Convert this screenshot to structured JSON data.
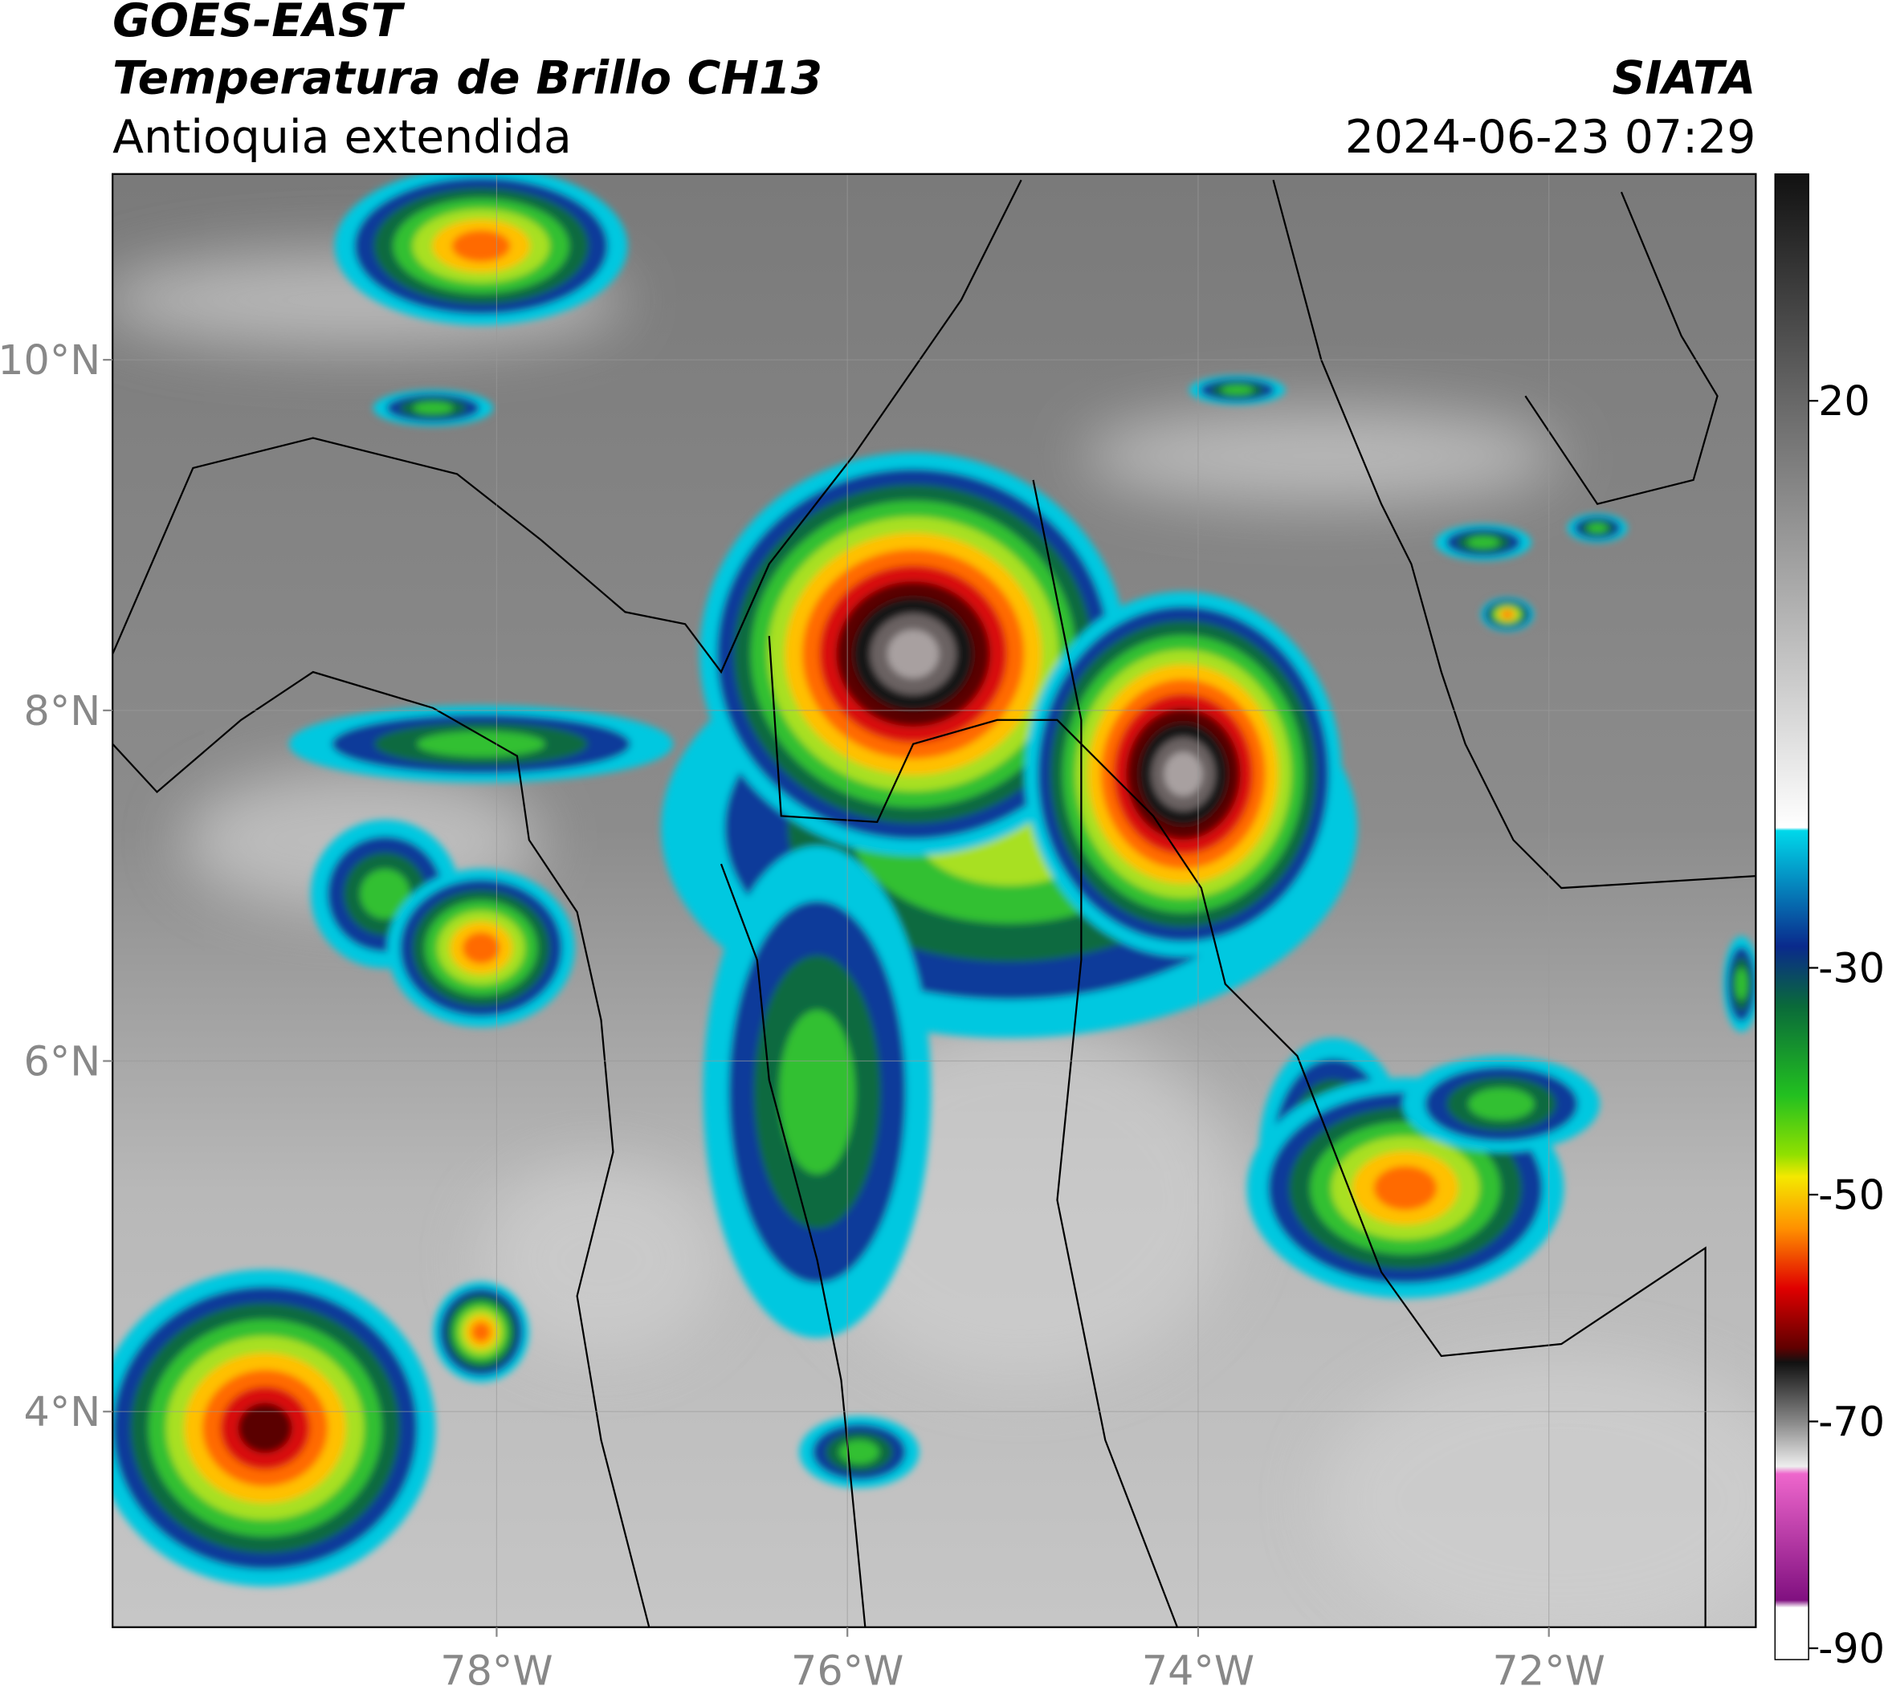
{
  "header": {
    "title": "GOES-EAST",
    "subtitle": "Temperatura de Brillo CH13",
    "region": "Antioquia extendida",
    "source": "SIATA",
    "datetime": "2024-06-23 07:29"
  },
  "map": {
    "xlim": [
      -80.19,
      -70.82
    ],
    "ylim": [
      2.77,
      11.06
    ],
    "xticks": [
      {
        "value": -78,
        "label": "78°W"
      },
      {
        "value": -76,
        "label": "76°W"
      },
      {
        "value": -74,
        "label": "74°W"
      },
      {
        "value": -72,
        "label": "72°W"
      }
    ],
    "yticks": [
      {
        "value": 4,
        "label": "4°N"
      },
      {
        "value": 6,
        "label": "6°N"
      },
      {
        "value": 8,
        "label": "8°N"
      },
      {
        "value": 10,
        "label": "10°N"
      }
    ]
  },
  "colorbar": {
    "lim": [
      -91,
      40
    ],
    "ticks": [
      20,
      -30,
      -50,
      -70,
      -90
    ]
  }
}
